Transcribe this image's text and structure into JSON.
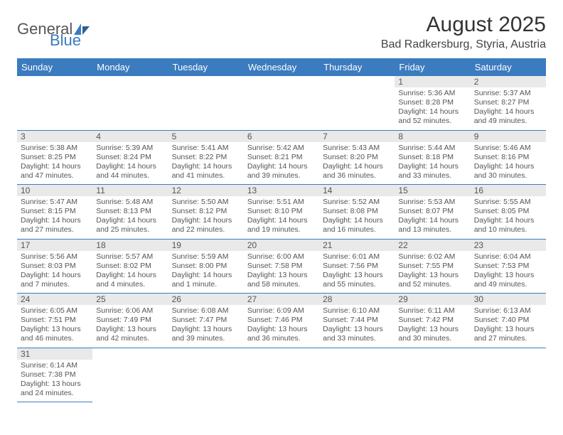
{
  "logo": {
    "text1": "General",
    "text2": "Blue"
  },
  "title": "August 2025",
  "subtitle": "Bad Radkersburg, Styria, Austria",
  "calendar": {
    "header_bg": "#3b7bbf",
    "header_fg": "#ffffff",
    "rule_color": "#3b7bbf",
    "text_color": "#555555",
    "daynum_bg": "#e9e9e9",
    "columns": [
      "Sunday",
      "Monday",
      "Tuesday",
      "Wednesday",
      "Thursday",
      "Friday",
      "Saturday"
    ],
    "weeks": [
      [
        null,
        null,
        null,
        null,
        null,
        {
          "n": "1",
          "sr": "Sunrise: 5:36 AM",
          "ss": "Sunset: 8:28 PM",
          "d1": "Daylight: 14 hours",
          "d2": "and 52 minutes."
        },
        {
          "n": "2",
          "sr": "Sunrise: 5:37 AM",
          "ss": "Sunset: 8:27 PM",
          "d1": "Daylight: 14 hours",
          "d2": "and 49 minutes."
        }
      ],
      [
        {
          "n": "3",
          "sr": "Sunrise: 5:38 AM",
          "ss": "Sunset: 8:25 PM",
          "d1": "Daylight: 14 hours",
          "d2": "and 47 minutes."
        },
        {
          "n": "4",
          "sr": "Sunrise: 5:39 AM",
          "ss": "Sunset: 8:24 PM",
          "d1": "Daylight: 14 hours",
          "d2": "and 44 minutes."
        },
        {
          "n": "5",
          "sr": "Sunrise: 5:41 AM",
          "ss": "Sunset: 8:22 PM",
          "d1": "Daylight: 14 hours",
          "d2": "and 41 minutes."
        },
        {
          "n": "6",
          "sr": "Sunrise: 5:42 AM",
          "ss": "Sunset: 8:21 PM",
          "d1": "Daylight: 14 hours",
          "d2": "and 39 minutes."
        },
        {
          "n": "7",
          "sr": "Sunrise: 5:43 AM",
          "ss": "Sunset: 8:20 PM",
          "d1": "Daylight: 14 hours",
          "d2": "and 36 minutes."
        },
        {
          "n": "8",
          "sr": "Sunrise: 5:44 AM",
          "ss": "Sunset: 8:18 PM",
          "d1": "Daylight: 14 hours",
          "d2": "and 33 minutes."
        },
        {
          "n": "9",
          "sr": "Sunrise: 5:46 AM",
          "ss": "Sunset: 8:16 PM",
          "d1": "Daylight: 14 hours",
          "d2": "and 30 minutes."
        }
      ],
      [
        {
          "n": "10",
          "sr": "Sunrise: 5:47 AM",
          "ss": "Sunset: 8:15 PM",
          "d1": "Daylight: 14 hours",
          "d2": "and 27 minutes."
        },
        {
          "n": "11",
          "sr": "Sunrise: 5:48 AM",
          "ss": "Sunset: 8:13 PM",
          "d1": "Daylight: 14 hours",
          "d2": "and 25 minutes."
        },
        {
          "n": "12",
          "sr": "Sunrise: 5:50 AM",
          "ss": "Sunset: 8:12 PM",
          "d1": "Daylight: 14 hours",
          "d2": "and 22 minutes."
        },
        {
          "n": "13",
          "sr": "Sunrise: 5:51 AM",
          "ss": "Sunset: 8:10 PM",
          "d1": "Daylight: 14 hours",
          "d2": "and 19 minutes."
        },
        {
          "n": "14",
          "sr": "Sunrise: 5:52 AM",
          "ss": "Sunset: 8:08 PM",
          "d1": "Daylight: 14 hours",
          "d2": "and 16 minutes."
        },
        {
          "n": "15",
          "sr": "Sunrise: 5:53 AM",
          "ss": "Sunset: 8:07 PM",
          "d1": "Daylight: 14 hours",
          "d2": "and 13 minutes."
        },
        {
          "n": "16",
          "sr": "Sunrise: 5:55 AM",
          "ss": "Sunset: 8:05 PM",
          "d1": "Daylight: 14 hours",
          "d2": "and 10 minutes."
        }
      ],
      [
        {
          "n": "17",
          "sr": "Sunrise: 5:56 AM",
          "ss": "Sunset: 8:03 PM",
          "d1": "Daylight: 14 hours",
          "d2": "and 7 minutes."
        },
        {
          "n": "18",
          "sr": "Sunrise: 5:57 AM",
          "ss": "Sunset: 8:02 PM",
          "d1": "Daylight: 14 hours",
          "d2": "and 4 minutes."
        },
        {
          "n": "19",
          "sr": "Sunrise: 5:59 AM",
          "ss": "Sunset: 8:00 PM",
          "d1": "Daylight: 14 hours",
          "d2": "and 1 minute."
        },
        {
          "n": "20",
          "sr": "Sunrise: 6:00 AM",
          "ss": "Sunset: 7:58 PM",
          "d1": "Daylight: 13 hours",
          "d2": "and 58 minutes."
        },
        {
          "n": "21",
          "sr": "Sunrise: 6:01 AM",
          "ss": "Sunset: 7:56 PM",
          "d1": "Daylight: 13 hours",
          "d2": "and 55 minutes."
        },
        {
          "n": "22",
          "sr": "Sunrise: 6:02 AM",
          "ss": "Sunset: 7:55 PM",
          "d1": "Daylight: 13 hours",
          "d2": "and 52 minutes."
        },
        {
          "n": "23",
          "sr": "Sunrise: 6:04 AM",
          "ss": "Sunset: 7:53 PM",
          "d1": "Daylight: 13 hours",
          "d2": "and 49 minutes."
        }
      ],
      [
        {
          "n": "24",
          "sr": "Sunrise: 6:05 AM",
          "ss": "Sunset: 7:51 PM",
          "d1": "Daylight: 13 hours",
          "d2": "and 46 minutes."
        },
        {
          "n": "25",
          "sr": "Sunrise: 6:06 AM",
          "ss": "Sunset: 7:49 PM",
          "d1": "Daylight: 13 hours",
          "d2": "and 42 minutes."
        },
        {
          "n": "26",
          "sr": "Sunrise: 6:08 AM",
          "ss": "Sunset: 7:47 PM",
          "d1": "Daylight: 13 hours",
          "d2": "and 39 minutes."
        },
        {
          "n": "27",
          "sr": "Sunrise: 6:09 AM",
          "ss": "Sunset: 7:46 PM",
          "d1": "Daylight: 13 hours",
          "d2": "and 36 minutes."
        },
        {
          "n": "28",
          "sr": "Sunrise: 6:10 AM",
          "ss": "Sunset: 7:44 PM",
          "d1": "Daylight: 13 hours",
          "d2": "and 33 minutes."
        },
        {
          "n": "29",
          "sr": "Sunrise: 6:11 AM",
          "ss": "Sunset: 7:42 PM",
          "d1": "Daylight: 13 hours",
          "d2": "and 30 minutes."
        },
        {
          "n": "30",
          "sr": "Sunrise: 6:13 AM",
          "ss": "Sunset: 7:40 PM",
          "d1": "Daylight: 13 hours",
          "d2": "and 27 minutes."
        }
      ],
      [
        {
          "n": "31",
          "sr": "Sunrise: 6:14 AM",
          "ss": "Sunset: 7:38 PM",
          "d1": "Daylight: 13 hours",
          "d2": "and 24 minutes."
        },
        null,
        null,
        null,
        null,
        null,
        null
      ]
    ]
  }
}
